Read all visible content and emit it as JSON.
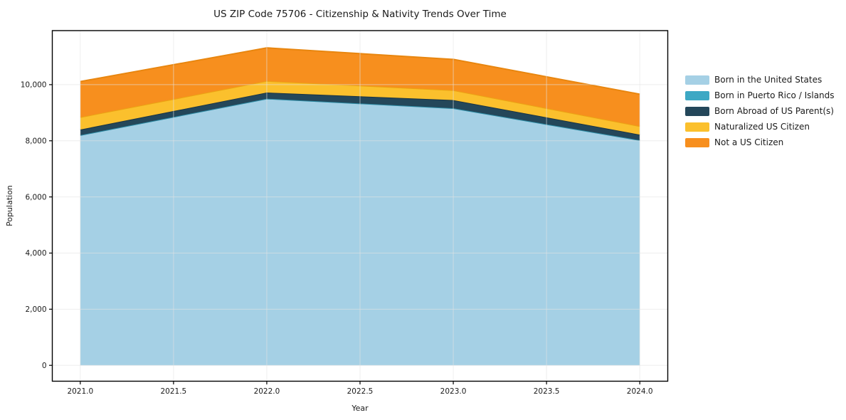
{
  "chart_data": {
    "type": "area",
    "stacked": true,
    "title": "US ZIP Code 75706 - Citizenship & Nativity Trends Over Time",
    "xlabel": "Year",
    "ylabel": "Population",
    "x": [
      2021,
      2022,
      2023,
      2024
    ],
    "series": [
      {
        "name": "Born in the United States",
        "color": "#a5d0e5",
        "edge_color": "#8cc0da",
        "values": [
          8200,
          9500,
          9160,
          8020
        ]
      },
      {
        "name": "Born in Puerto Rico / Islands",
        "color": "#3da8c4",
        "edge_color": "#2e8da6",
        "values": [
          0,
          0,
          0,
          0
        ]
      },
      {
        "name": "Born Abroad of US Parent(s)",
        "color": "#24475a",
        "edge_color": "#1a3443",
        "values": [
          200,
          220,
          290,
          200
        ]
      },
      {
        "name": "Naturalized US Citizen",
        "color": "#fbc02d",
        "edge_color": "#eba313",
        "values": [
          440,
          410,
          350,
          300
        ]
      },
      {
        "name": "Not a US Citizen",
        "color": "#f78f1e",
        "edge_color": "#e8860f",
        "values": [
          1270,
          1180,
          1100,
          1140
        ]
      }
    ],
    "totals_by_year": [
      10110,
      11310,
      10900,
      9660
    ],
    "xlim": [
      2020.85,
      2024.15
    ],
    "ylim": [
      -565,
      11925
    ],
    "xticks": [
      2021.0,
      2021.5,
      2022.0,
      2022.5,
      2023.0,
      2023.5,
      2024.0
    ],
    "xtick_labels": [
      "2021.0",
      "2021.5",
      "2022.0",
      "2022.5",
      "2023.0",
      "2023.5",
      "2024.0"
    ],
    "yticks": [
      0,
      2000,
      4000,
      6000,
      8000,
      10000
    ],
    "ytick_labels": [
      "0",
      "2,000",
      "4,000",
      "6,000",
      "8,000",
      "10,000"
    ],
    "grid": true,
    "grid_color": "#e3e3e3",
    "spine_color": "#000000",
    "legend_position": "right"
  }
}
